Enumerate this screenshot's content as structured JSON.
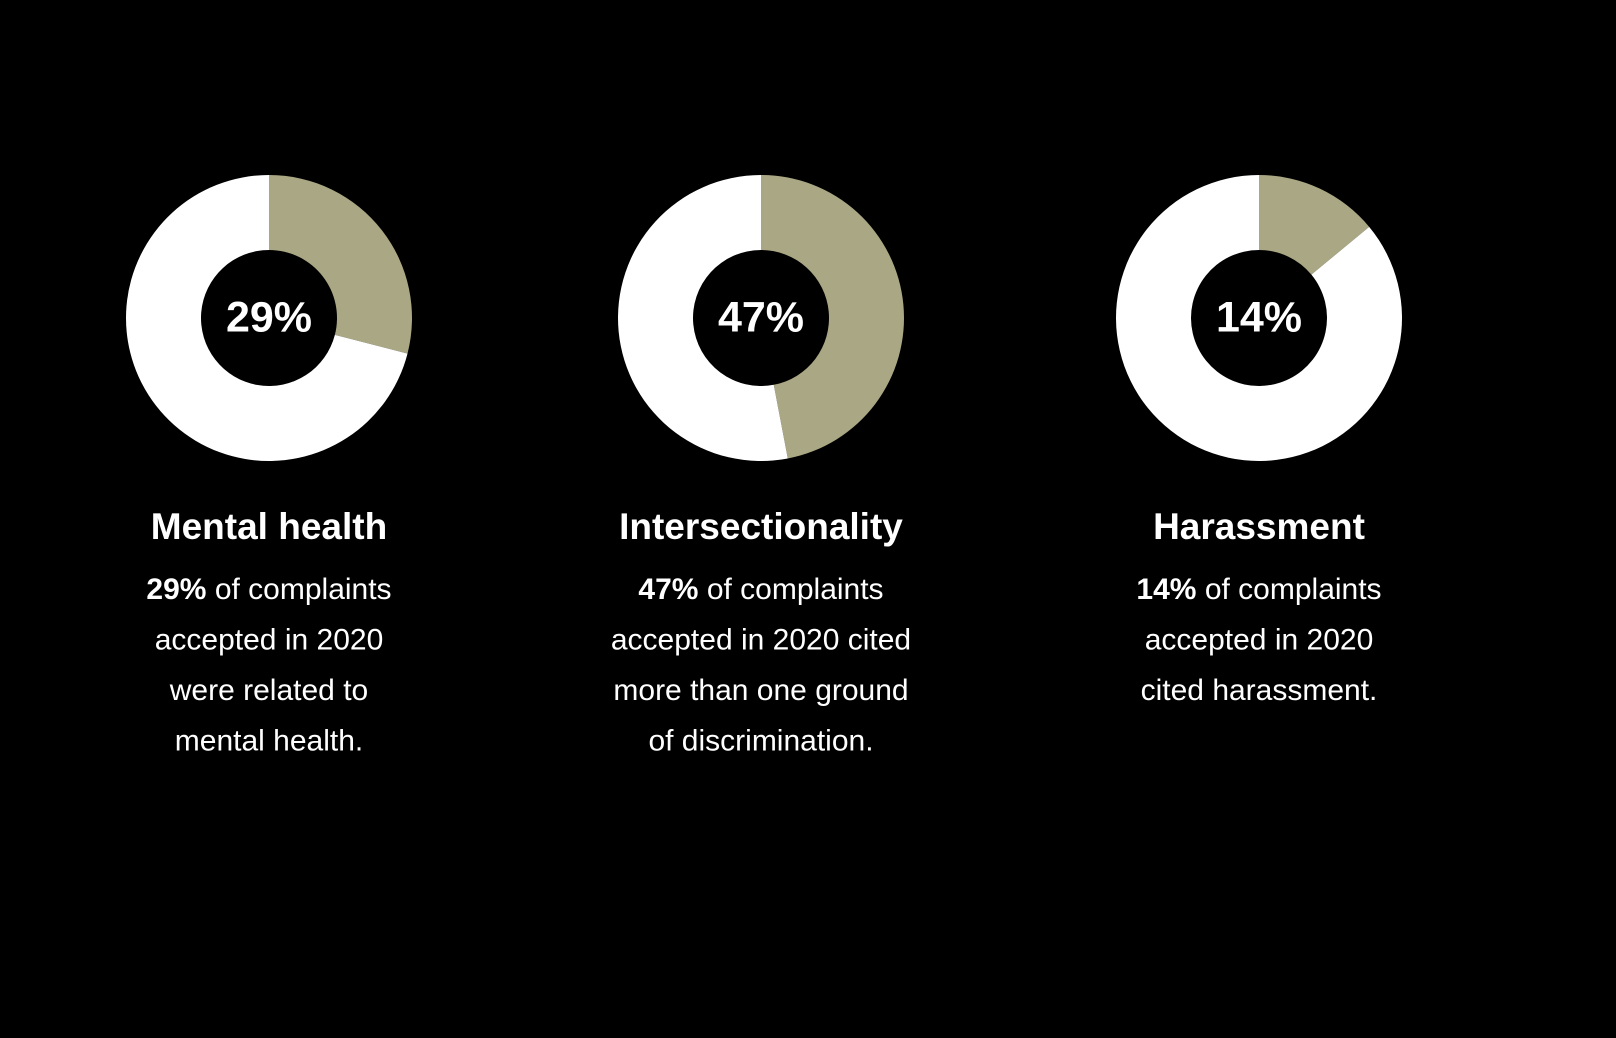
{
  "chart_data": [
    {
      "type": "donut",
      "title": "Mental health",
      "values": [
        29,
        71
      ],
      "value_labels": [
        "29%",
        null
      ],
      "colors": [
        "#aaa784",
        "#ffffff"
      ],
      "description": {
        "highlight": "29%",
        "lines": [
          "of complaints",
          "accepted in 2020",
          "were related to",
          "mental health."
        ]
      }
    },
    {
      "type": "donut",
      "title": "Intersectionality",
      "values": [
        47,
        53
      ],
      "value_labels": [
        "47%",
        null
      ],
      "colors": [
        "#aaa784",
        "#ffffff"
      ],
      "description": {
        "highlight": "47%",
        "lines": [
          "of complaints",
          "accepted in 2020 cited",
          "more than one ground",
          "of discrimination."
        ]
      }
    },
    {
      "type": "donut",
      "title": "Harassment",
      "values": [
        14,
        86
      ],
      "value_labels": [
        "14%",
        null
      ],
      "colors": [
        "#aaa784",
        "#ffffff"
      ],
      "description": {
        "highlight": "14%",
        "lines": [
          "of complaints",
          "accepted in 2020",
          "cited harassment."
        ]
      }
    }
  ]
}
